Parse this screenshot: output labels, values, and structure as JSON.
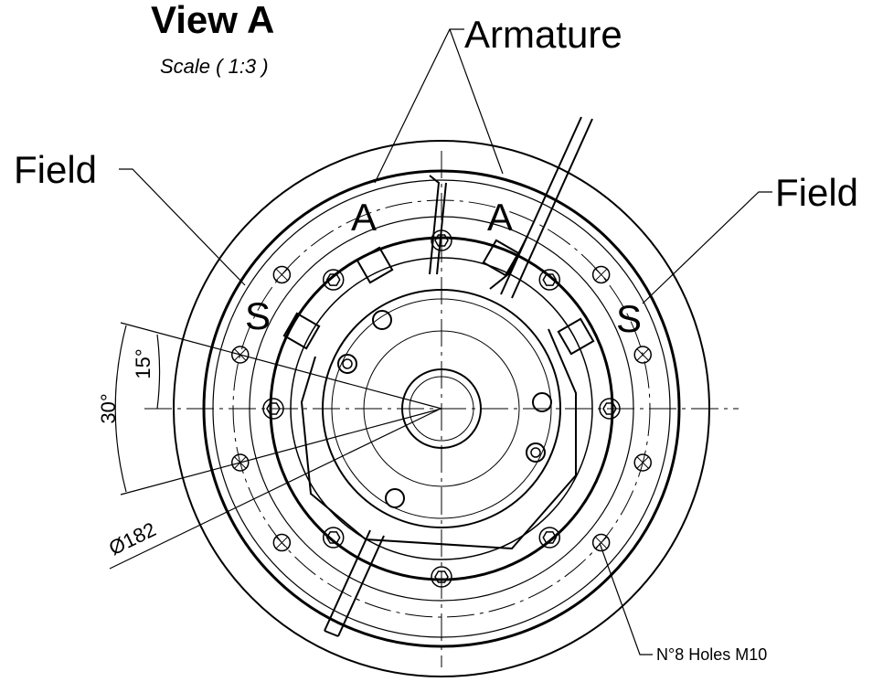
{
  "header": {
    "title": "View A",
    "scale": "Scale ( 1:3 )"
  },
  "labels": {
    "armature": "Armature",
    "field_left": "Field",
    "field_right": "Field",
    "pole_a_left": "A",
    "pole_a_right": "A",
    "pole_s_left": "S",
    "pole_s_right": "S",
    "angle_15": "15°",
    "angle_30": "30°",
    "diameter": "Ø182",
    "holes": "N°8 Holes M10"
  }
}
